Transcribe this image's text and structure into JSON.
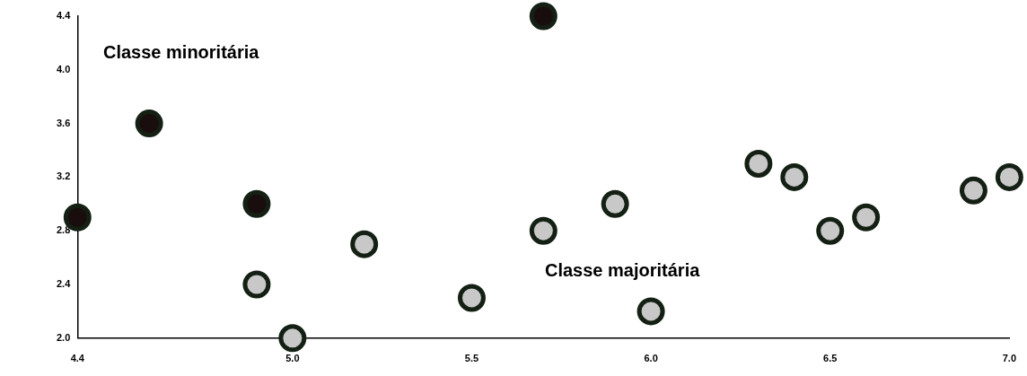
{
  "chart_data": {
    "type": "scatter",
    "series": [
      {
        "color": "#1a0d0d",
        "x": [
          4.4,
          4.6,
          4.9,
          5.7
        ],
        "values": [
          2.9,
          3.6,
          3.0,
          4.4
        ]
      },
      {
        "color": "#c8c8c8",
        "x": [
          4.9,
          5.0,
          5.2,
          5.5,
          5.7,
          5.9,
          6.0,
          6.3,
          6.4,
          6.5,
          6.6,
          6.9,
          7.0
        ],
        "values": [
          2.4,
          2.0,
          2.7,
          2.3,
          2.8,
          3.0,
          2.2,
          3.3,
          3.2,
          2.8,
          2.9,
          3.1,
          3.2
        ]
      }
    ],
    "xlim": [
      4.4,
      7.0
    ],
    "xticks": [
      4.4,
      {
        "value": 5,
        "label": "5.0"
      },
      5.5,
      {
        "value": 6,
        "label": "6.0"
      },
      6.5,
      {
        "value": 7,
        "label": "7.0"
      }
    ],
    "ylim": [
      2.0,
      4.4
    ],
    "yticks": [
      {
        "value": 2,
        "label": "2.0"
      },
      2.4,
      2.8,
      3.2,
      3.6,
      {
        "value": 4,
        "label": "4.0"
      },
      4.4
    ],
    "annotations": [
      "Classe minoritária",
      "Classe majoritária"
    ],
    "marker": "circle",
    "grid": false,
    "legend": false
  }
}
